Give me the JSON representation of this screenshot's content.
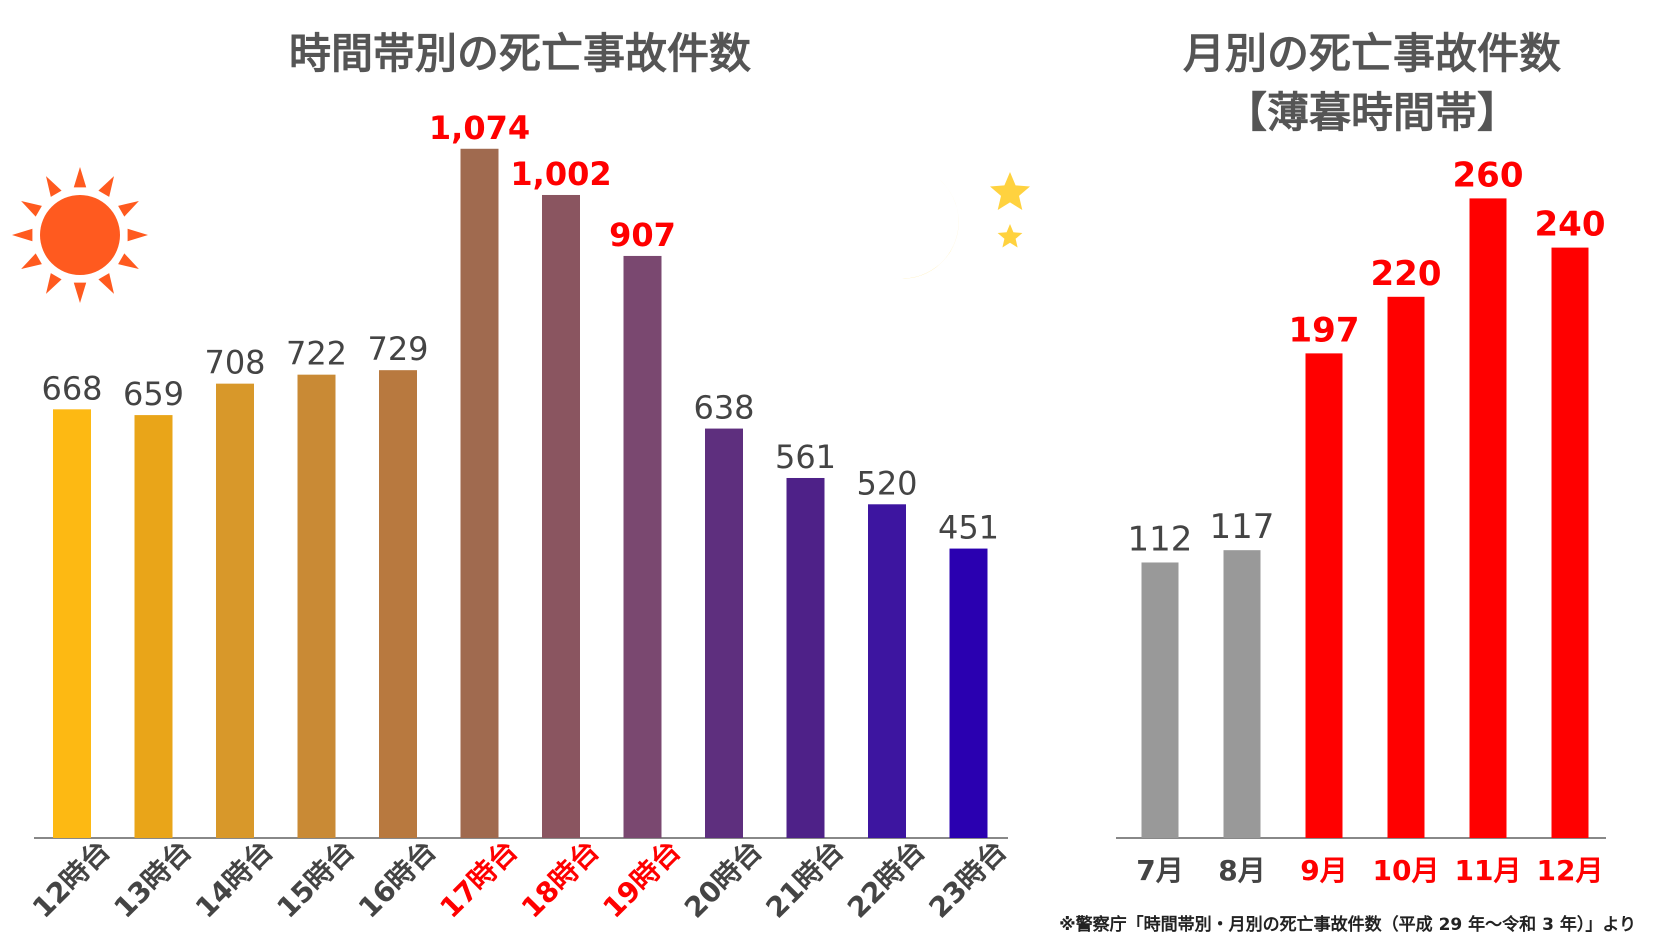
{
  "chart_data": [
    {
      "type": "bar",
      "title": "時間帯別の死亡事故件数",
      "categories": [
        "12時台",
        "13時台",
        "14時台",
        "15時台",
        "16時台",
        "17時台",
        "18時台",
        "19時台",
        "20時台",
        "21時台",
        "22時台",
        "23時台"
      ],
      "value_labels": [
        "668",
        "659",
        "708",
        "722",
        "729",
        "1,074",
        "1,002",
        "907",
        "638",
        "561",
        "520",
        "451"
      ],
      "values": [
        668,
        659,
        708,
        722,
        729,
        1074,
        1002,
        907,
        638,
        561,
        520,
        451
      ],
      "highlight": [
        false,
        false,
        false,
        false,
        false,
        true,
        true,
        true,
        false,
        false,
        false,
        false
      ],
      "bar_colors": [
        "#FDB913",
        "#E9A519",
        "#D8982A",
        "#C98A35",
        "#B8793F",
        "#A06A4F",
        "#8A5560",
        "#7A4870",
        "#5E2F7E",
        "#4E2188",
        "#3D15A0",
        "#2A00B0"
      ],
      "ylim": [
        0,
        1150
      ],
      "grid": false
    },
    {
      "type": "bar",
      "title": "月別の死亡事故件数",
      "subtitle": "【薄暮時間帯】",
      "categories": [
        "7月",
        "8月",
        "9月",
        "10月",
        "11月",
        "12月"
      ],
      "value_labels": [
        "112",
        "117",
        "197",
        "220",
        "260",
        "240"
      ],
      "values": [
        112,
        117,
        197,
        220,
        260,
        240
      ],
      "highlight": [
        false,
        false,
        true,
        true,
        true,
        true
      ],
      "bar_colors": [
        "#999999",
        "#999999",
        "#FF0000",
        "#FF0000",
        "#FF0000",
        "#FF0000"
      ],
      "ylim": [
        0,
        300
      ],
      "grid": false
    }
  ],
  "source_note": "※警察庁「時間帯別・月別の死亡事故件数（平成 29 年～令和 3 年）」より",
  "colors": {
    "title": "#555555",
    "label_normal": "#444444",
    "label_highlight": "#FF0000",
    "axis": "#888888",
    "sun": "#FF5A1F",
    "moon": "#FFD23F"
  },
  "icons": [
    "sun-icon",
    "crescent-moon-icon",
    "star-icon"
  ]
}
